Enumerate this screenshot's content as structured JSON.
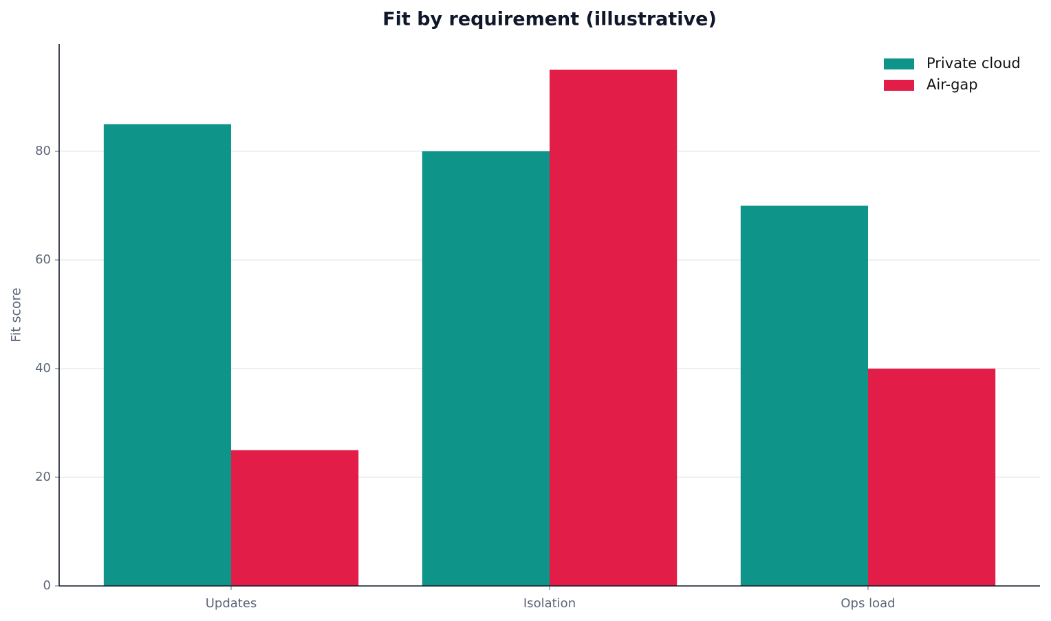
{
  "chart_data": {
    "type": "bar",
    "title": "Fit by requirement (illustrative)",
    "y_label": "Fit score",
    "categories": [
      "Updates",
      "Isolation",
      "Ops load"
    ],
    "series": [
      {
        "name": "Private cloud",
        "color": "#0e9488",
        "values": [
          85,
          80,
          70
        ]
      },
      {
        "name": "Air-gap",
        "color": "#e11d48",
        "values": [
          25,
          95,
          40
        ]
      }
    ],
    "ylim": [
      0,
      99.75
    ],
    "yticks": [
      0,
      20,
      40,
      60,
      80
    ],
    "grid": true,
    "legend": "upper right"
  }
}
